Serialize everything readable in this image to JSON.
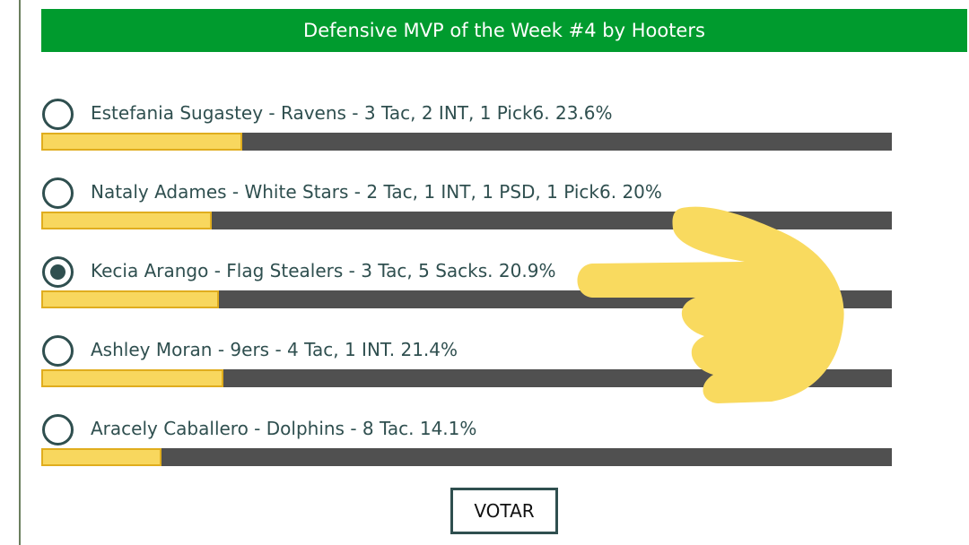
{
  "poll": {
    "title": "Defensive MVP of the Week #4 by Hooters",
    "options": [
      {
        "label": "Estefania Sugastey - Ravens - 3 Tac, 2 INT, 1 Pick6.",
        "percent": 23.6,
        "percent_label": "23.6%"
      },
      {
        "label": "Nataly Adames - White Stars - 2 Tac, 1 INT, 1 PSD, 1 Pick6.",
        "percent": 20,
        "percent_label": "20%"
      },
      {
        "label": "Kecia Arango - Flag Stealers - 3 Tac, 5 Sacks.",
        "percent": 20.9,
        "percent_label": "20.9%"
      },
      {
        "label": "Ashley Moran - 9ers - 4 Tac, 1 INT.",
        "percent": 21.4,
        "percent_label": "21.4%"
      },
      {
        "label": "Aracely Caballero - Dolphins - 8 Tac.",
        "percent": 14.1,
        "percent_label": "14.1%"
      }
    ],
    "selected_option": 2,
    "button": "VOTAR"
  }
}
